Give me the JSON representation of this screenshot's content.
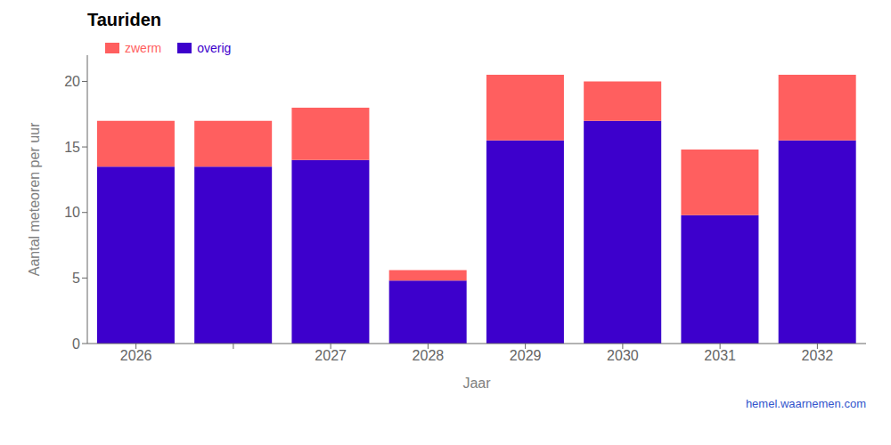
{
  "chart_data": {
    "type": "bar",
    "title": "Tauriden",
    "xlabel": "Jaar",
    "ylabel": "Aantal meteoren per uur",
    "categories": [
      "2026",
      null,
      "2027",
      "2028",
      "2029",
      "2030",
      "2031",
      "2032"
    ],
    "series": [
      {
        "name": "overig",
        "color": "#3D00CC",
        "values": [
          13.5,
          13.5,
          14.0,
          4.8,
          15.5,
          17.0,
          9.8,
          15.5
        ]
      },
      {
        "name": "zwerm",
        "color": "#FF5F5F",
        "values": [
          3.5,
          3.5,
          4.0,
          0.8,
          5.0,
          3.0,
          5.0,
          5.0
        ]
      }
    ],
    "stacked": true,
    "ylim": [
      0,
      22
    ],
    "yticks": [
      0,
      5,
      10,
      15,
      20
    ],
    "grid": false,
    "legend": "upper left",
    "annotations": [
      {
        "text": "hemel.waarnemen.com",
        "color": "#3355CC"
      }
    ]
  }
}
